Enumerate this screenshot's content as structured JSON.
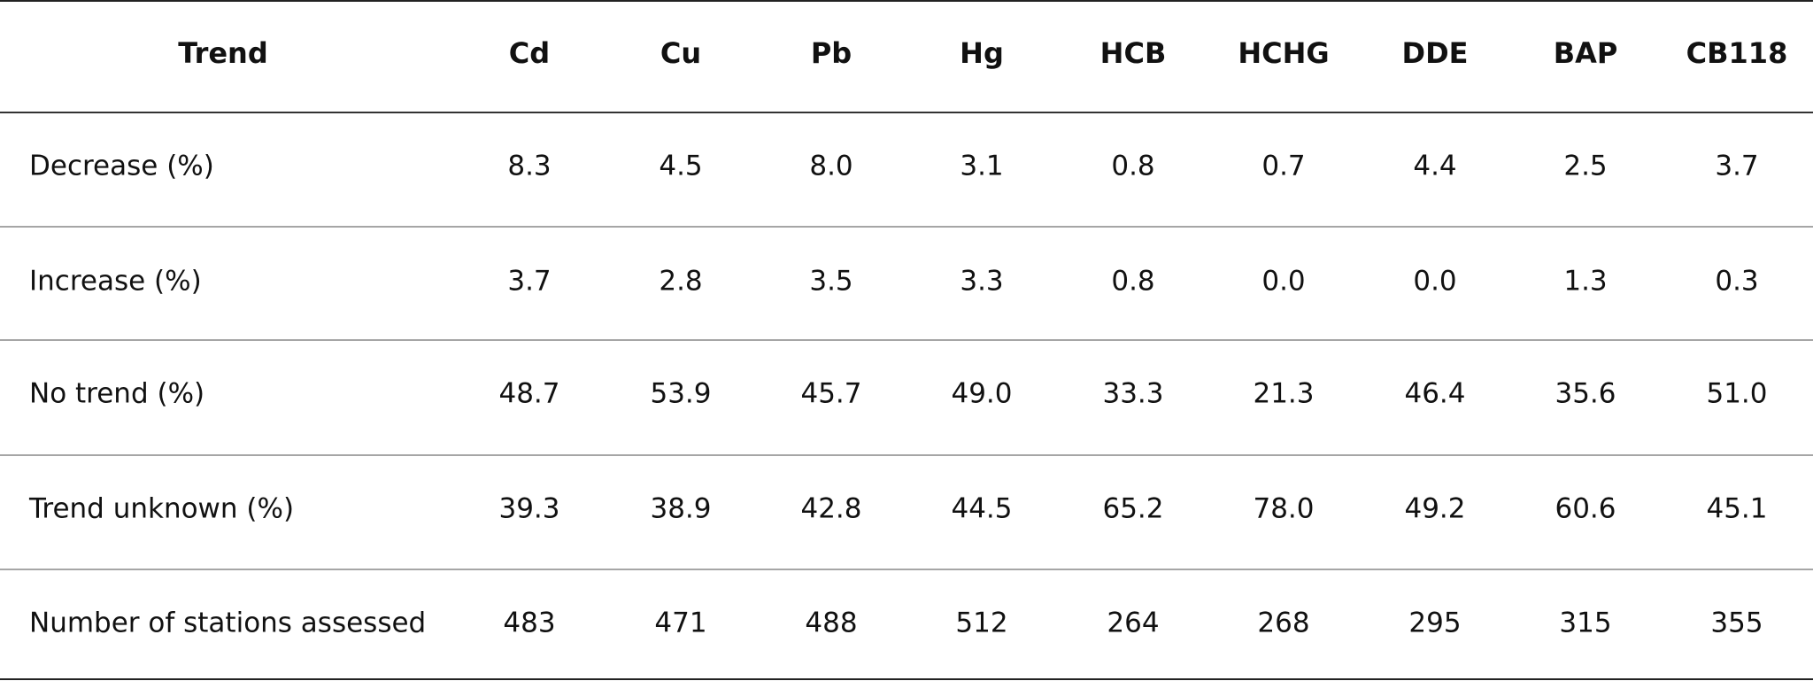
{
  "table": {
    "header": [
      "Trend",
      "Cd",
      "Cu",
      "Pb",
      "Hg",
      "HCB",
      "HCHG",
      "DDE",
      "BAP",
      "CB118"
    ],
    "rows": [
      [
        "Decrease (%)",
        "8.3",
        "4.5",
        "8.0",
        "3.1",
        "0.8",
        "0.7",
        "4.4",
        "2.5",
        "3.7"
      ],
      [
        "Increase (%)",
        "3.7",
        "2.8",
        "3.5",
        "3.3",
        "0.8",
        "0.0",
        "0.0",
        "1.3",
        "0.3"
      ],
      [
        "No trend (%)",
        "48.7",
        "53.9",
        "45.7",
        "49.0",
        "33.3",
        "21.3",
        "46.4",
        "35.6",
        "51.0"
      ],
      [
        "Trend unknown (%)",
        "39.3",
        "38.9",
        "42.8",
        "44.5",
        "65.2",
        "78.0",
        "49.2",
        "60.6",
        "45.1"
      ],
      [
        "Number of stations assessed",
        "483",
        "471",
        "488",
        "512",
        "264",
        "268",
        "295",
        "315",
        "355"
      ]
    ]
  }
}
